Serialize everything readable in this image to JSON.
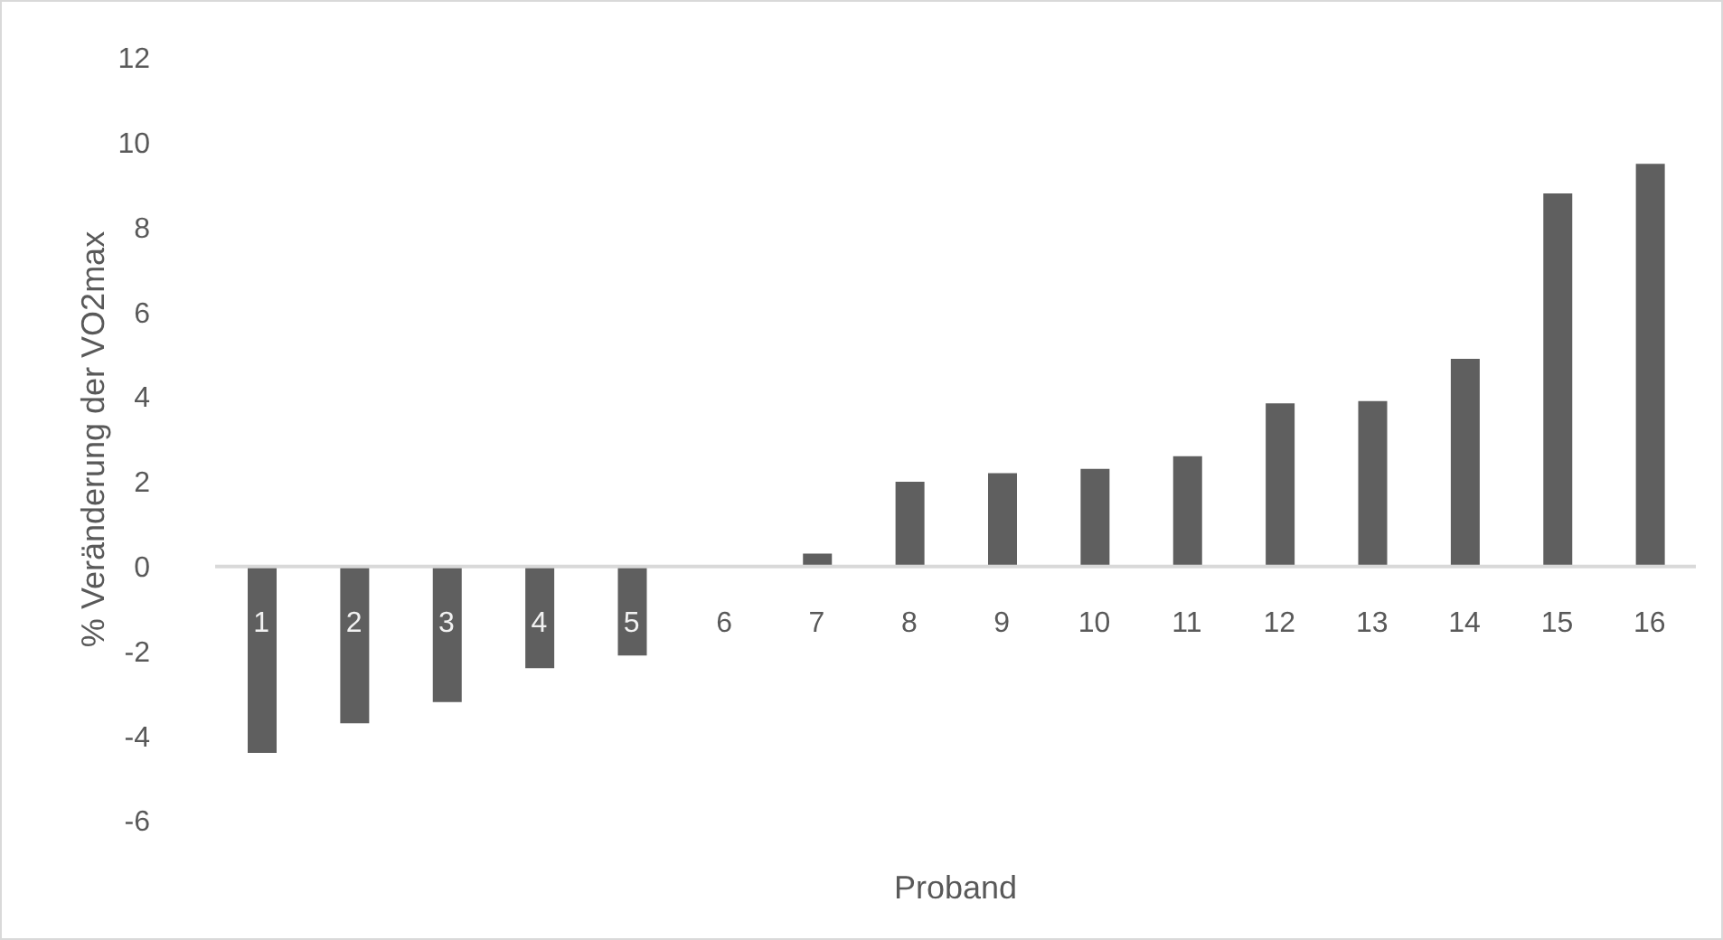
{
  "chart_data": {
    "type": "bar",
    "xlabel": "Proband",
    "ylabel": "% Veränderung der VO2max",
    "categories": [
      "1",
      "2",
      "3",
      "4",
      "5",
      "6",
      "7",
      "8",
      "9",
      "10",
      "11",
      "12",
      "13",
      "14",
      "15",
      "16"
    ],
    "values": [
      -4.4,
      -3.7,
      -3.2,
      -2.4,
      -2.1,
      0,
      0.3,
      2.0,
      2.2,
      2.3,
      2.6,
      3.85,
      3.9,
      4.9,
      8.8,
      9.5
    ],
    "color": "#5f5f5f",
    "ylim": [
      -6,
      12
    ],
    "yticks": [
      -6,
      -4,
      -2,
      0,
      2,
      4,
      6,
      8,
      10,
      12
    ],
    "grid": false,
    "legend": false
  }
}
